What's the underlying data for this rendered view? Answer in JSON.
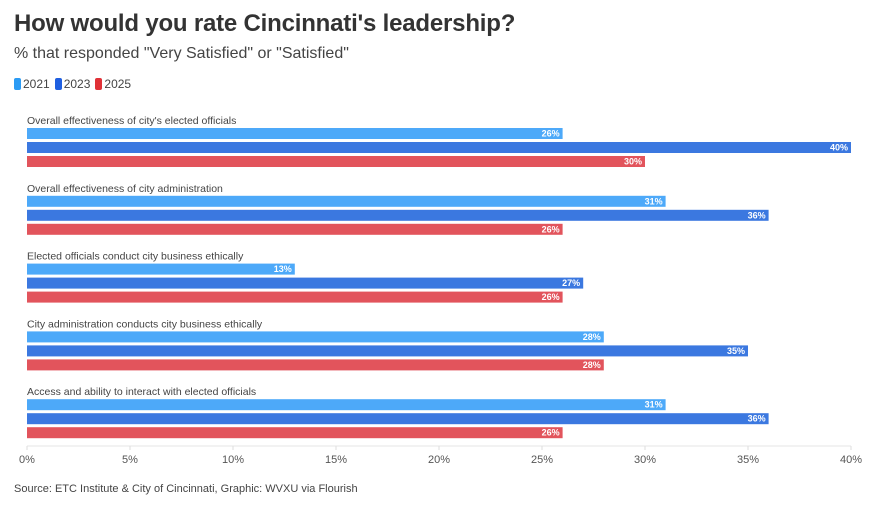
{
  "chart_data": {
    "type": "bar",
    "orientation": "horizontal",
    "title": "How would you rate Cincinnati's leadership?",
    "subtitle": "% that responded \"Very Satisfied\" or \"Satisfied\"",
    "categories": [
      "Overall effectiveness of city's elected officials",
      "Overall effectiveness of city administration",
      "Elected officials conduct city business ethically",
      "City administration conducts city business ethically",
      "Access and ability to interact with elected officials"
    ],
    "series": [
      {
        "name": "2021",
        "color": "#4da9f9",
        "values": [
          26,
          31,
          13,
          28,
          31
        ]
      },
      {
        "name": "2023",
        "color": "#3b78e0",
        "values": [
          40,
          36,
          27,
          35,
          36
        ]
      },
      {
        "name": "2025",
        "color": "#e2545c",
        "values": [
          30,
          26,
          26,
          28,
          26
        ]
      }
    ],
    "value_format": "%",
    "xlabel": "",
    "ylabel": "",
    "xlim": [
      0,
      40
    ],
    "x_ticks": [
      "0%",
      "5%",
      "10%",
      "15%",
      "20%",
      "25%",
      "30%",
      "35%",
      "40%"
    ],
    "grid": false,
    "legend_position": "top-left",
    "legend_colors": [
      "#2b9bf4",
      "#1f5fe0",
      "#e03137"
    ],
    "source": "Source: ETC Institute & City of Cincinnati, Graphic: WVXU via Flourish"
  }
}
